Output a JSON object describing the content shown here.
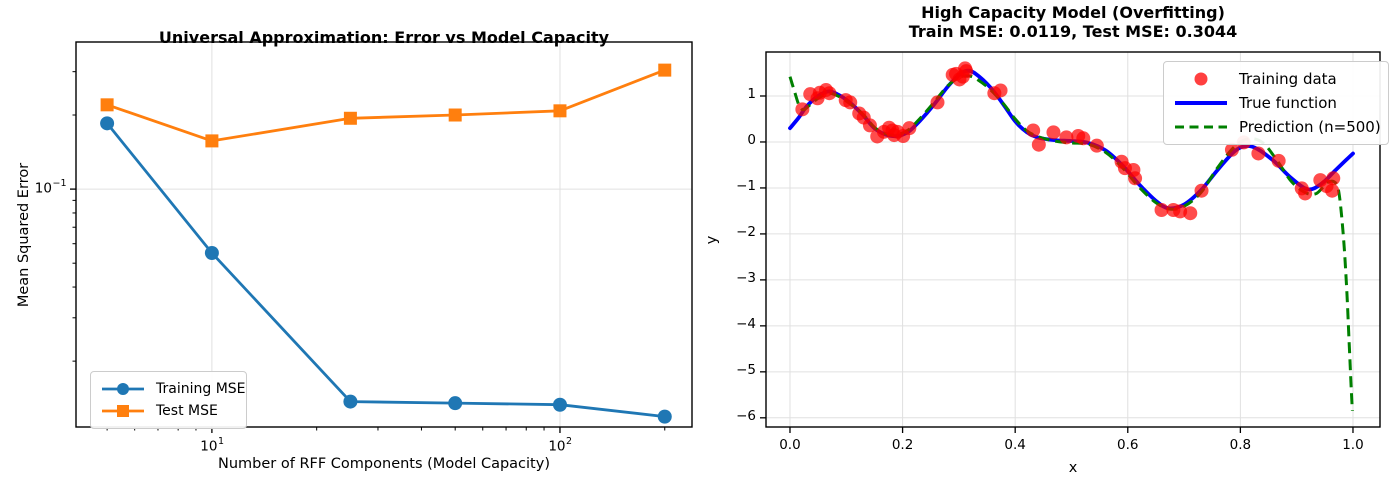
{
  "figure": {
    "background": "#ffffff",
    "grid_color": "#e0e0e0",
    "spine_color": "#000000"
  },
  "chart_data": [
    {
      "id": "capacity-curve",
      "type": "line",
      "title": "Universal Approximation: Error vs Model Capacity",
      "xlabel": "Number of RFF Components (Model Capacity)",
      "ylabel": "Mean Squared Error",
      "xscale": "log",
      "yscale": "log",
      "xlim": [
        4.07,
        239.5
      ],
      "ylim": [
        0.0108,
        0.396
      ],
      "grid": true,
      "legend_position": "lower left",
      "categories": [
        5,
        10,
        25,
        50,
        100,
        200
      ],
      "series": [
        {
          "name": "Training MSE",
          "color": "#1f77b4",
          "marker": "circle",
          "values": [
            0.185,
            0.055,
            0.0137,
            0.0135,
            0.0133,
            0.0119
          ]
        },
        {
          "name": "Test MSE",
          "color": "#ff7f0e",
          "marker": "square",
          "values": [
            0.22,
            0.157,
            0.194,
            0.2,
            0.208,
            0.3044
          ]
        }
      ],
      "xticks": [
        {
          "v": 10,
          "base": "10",
          "exp": "1"
        },
        {
          "v": 100,
          "base": "10",
          "exp": "2"
        }
      ],
      "yticks": [
        {
          "v": 0.1,
          "base": "10",
          "exp": "−1"
        }
      ],
      "x_minor_ticks": [
        5,
        6,
        7,
        8,
        9,
        20,
        30,
        40,
        50,
        60,
        70,
        80,
        90,
        200
      ],
      "y_minor_ticks": [
        0.02,
        0.03,
        0.04,
        0.05,
        0.06,
        0.07,
        0.08,
        0.09,
        0.2,
        0.3
      ]
    },
    {
      "id": "overfitting-fit",
      "type": "scatter+line",
      "title": "High Capacity Model (Overfitting)",
      "subtitle": "Train MSE: 0.0119, Test MSE: 0.3044",
      "train_mse": 0.0119,
      "test_mse": 0.3044,
      "xlabel": "x",
      "ylabel": "y",
      "xscale": "linear",
      "yscale": "linear",
      "xlim": [
        -0.0426,
        1.048
      ],
      "ylim": [
        -6.2,
        1.957
      ],
      "grid": true,
      "legend_position": "upper right",
      "xticks": [
        {
          "v": 0.0,
          "label": "0.0"
        },
        {
          "v": 0.2,
          "label": "0.2"
        },
        {
          "v": 0.4,
          "label": "0.4"
        },
        {
          "v": 0.6,
          "label": "0.6"
        },
        {
          "v": 0.8,
          "label": "0.8"
        },
        {
          "v": 1.0,
          "label": "1.0"
        }
      ],
      "yticks": [
        {
          "v": 1,
          "label": "1"
        },
        {
          "v": 0,
          "label": "0"
        },
        {
          "v": -1,
          "label": "−1"
        },
        {
          "v": -2,
          "label": "−2"
        },
        {
          "v": -3,
          "label": "−3"
        },
        {
          "v": -4,
          "label": "−4"
        },
        {
          "v": -5,
          "label": "−5"
        },
        {
          "v": -6,
          "label": "−6"
        }
      ],
      "scatter": {
        "name": "Training data",
        "color": "#ff0000",
        "opacity": 0.7,
        "points": [
          [
            0.022,
            0.71
          ],
          [
            0.036,
            1.04
          ],
          [
            0.049,
            0.95
          ],
          [
            0.053,
            1.07
          ],
          [
            0.064,
            1.13
          ],
          [
            0.07,
            1.06
          ],
          [
            0.099,
            0.91
          ],
          [
            0.107,
            0.86
          ],
          [
            0.123,
            0.62
          ],
          [
            0.131,
            0.53
          ],
          [
            0.142,
            0.36
          ],
          [
            0.155,
            0.12
          ],
          [
            0.167,
            0.22
          ],
          [
            0.176,
            0.31
          ],
          [
            0.182,
            0.25
          ],
          [
            0.185,
            0.15
          ],
          [
            0.191,
            0.22
          ],
          [
            0.201,
            0.13
          ],
          [
            0.212,
            0.3
          ],
          [
            0.262,
            0.86
          ],
          [
            0.289,
            1.46
          ],
          [
            0.295,
            1.48
          ],
          [
            0.301,
            1.36
          ],
          [
            0.307,
            1.42
          ],
          [
            0.311,
            1.6
          ],
          [
            0.313,
            1.54
          ],
          [
            0.363,
            1.06
          ],
          [
            0.374,
            1.12
          ],
          [
            0.432,
            0.25
          ],
          [
            0.442,
            -0.06
          ],
          [
            0.468,
            0.21
          ],
          [
            0.491,
            0.1
          ],
          [
            0.512,
            0.13
          ],
          [
            0.521,
            0.08
          ],
          [
            0.545,
            -0.08
          ],
          [
            0.589,
            -0.43
          ],
          [
            0.595,
            -0.57
          ],
          [
            0.61,
            -0.61
          ],
          [
            0.613,
            -0.79
          ],
          [
            0.66,
            -1.48
          ],
          [
            0.681,
            -1.48
          ],
          [
            0.693,
            -1.51
          ],
          [
            0.711,
            -1.55
          ],
          [
            0.731,
            -1.06
          ],
          [
            0.785,
            -0.17
          ],
          [
            0.806,
            -0.01
          ],
          [
            0.832,
            -0.25
          ],
          [
            0.868,
            -0.41
          ],
          [
            0.909,
            -1.01
          ],
          [
            0.915,
            -1.12
          ],
          [
            0.942,
            -0.83
          ],
          [
            0.953,
            -0.96
          ],
          [
            0.963,
            -1.06
          ],
          [
            0.965,
            -0.79
          ]
        ]
      },
      "true_function": {
        "name": "True function",
        "color": "#0000ff",
        "points": [
          [
            0.0,
            0.3
          ],
          [
            0.015,
            0.52
          ],
          [
            0.03,
            0.78
          ],
          [
            0.05,
            1.0
          ],
          [
            0.07,
            1.1
          ],
          [
            0.09,
            1.0
          ],
          [
            0.11,
            0.82
          ],
          [
            0.13,
            0.58
          ],
          [
            0.15,
            0.3
          ],
          [
            0.17,
            0.16
          ],
          [
            0.19,
            0.13
          ],
          [
            0.21,
            0.22
          ],
          [
            0.23,
            0.45
          ],
          [
            0.255,
            0.8
          ],
          [
            0.28,
            1.2
          ],
          [
            0.3,
            1.45
          ],
          [
            0.315,
            1.55
          ],
          [
            0.33,
            1.48
          ],
          [
            0.355,
            1.2
          ],
          [
            0.38,
            0.8
          ],
          [
            0.4,
            0.45
          ],
          [
            0.42,
            0.22
          ],
          [
            0.44,
            0.1
          ],
          [
            0.47,
            0.04
          ],
          [
            0.5,
            0.02
          ],
          [
            0.53,
            -0.02
          ],
          [
            0.56,
            -0.18
          ],
          [
            0.59,
            -0.5
          ],
          [
            0.62,
            -0.92
          ],
          [
            0.65,
            -1.28
          ],
          [
            0.672,
            -1.44
          ],
          [
            0.7,
            -1.36
          ],
          [
            0.73,
            -1.05
          ],
          [
            0.76,
            -0.6
          ],
          [
            0.79,
            -0.2
          ],
          [
            0.81,
            -0.09
          ],
          [
            0.83,
            -0.15
          ],
          [
            0.86,
            -0.42
          ],
          [
            0.89,
            -0.78
          ],
          [
            0.92,
            -1.03
          ],
          [
            0.945,
            -0.9
          ],
          [
            0.97,
            -0.6
          ],
          [
            1.0,
            -0.25
          ]
        ]
      },
      "prediction": {
        "name": "Prediction (n=500)",
        "color": "#008000",
        "dashed": true,
        "points": [
          [
            0.0,
            1.42
          ],
          [
            0.008,
            1.1
          ],
          [
            0.016,
            0.8
          ],
          [
            0.024,
            0.7
          ],
          [
            0.035,
            0.8
          ],
          [
            0.05,
            0.95
          ],
          [
            0.07,
            1.06
          ],
          [
            0.09,
            0.97
          ],
          [
            0.11,
            0.8
          ],
          [
            0.13,
            0.6
          ],
          [
            0.15,
            0.32
          ],
          [
            0.17,
            0.18
          ],
          [
            0.19,
            0.16
          ],
          [
            0.21,
            0.26
          ],
          [
            0.23,
            0.5
          ],
          [
            0.255,
            0.85
          ],
          [
            0.28,
            1.22
          ],
          [
            0.3,
            1.4
          ],
          [
            0.315,
            1.44
          ],
          [
            0.33,
            1.38
          ],
          [
            0.355,
            1.15
          ],
          [
            0.38,
            0.82
          ],
          [
            0.4,
            0.5
          ],
          [
            0.42,
            0.25
          ],
          [
            0.44,
            0.12
          ],
          [
            0.47,
            0.02
          ],
          [
            0.5,
            -0.02
          ],
          [
            0.53,
            -0.05
          ],
          [
            0.56,
            -0.22
          ],
          [
            0.59,
            -0.55
          ],
          [
            0.62,
            -0.98
          ],
          [
            0.65,
            -1.32
          ],
          [
            0.675,
            -1.46
          ],
          [
            0.7,
            -1.4
          ],
          [
            0.73,
            -1.1
          ],
          [
            0.76,
            -0.55
          ],
          [
            0.79,
            -0.1
          ],
          [
            0.815,
            0.07
          ],
          [
            0.84,
            -0.02
          ],
          [
            0.865,
            -0.4
          ],
          [
            0.89,
            -0.85
          ],
          [
            0.915,
            -1.1
          ],
          [
            0.935,
            -1.12
          ],
          [
            0.955,
            -0.88
          ],
          [
            0.968,
            -0.88
          ],
          [
            0.975,
            -1.1
          ],
          [
            0.982,
            -1.9
          ],
          [
            0.988,
            -3.0
          ],
          [
            0.993,
            -4.3
          ],
          [
            0.997,
            -5.4
          ],
          [
            0.999,
            -5.85
          ]
        ]
      }
    }
  ]
}
